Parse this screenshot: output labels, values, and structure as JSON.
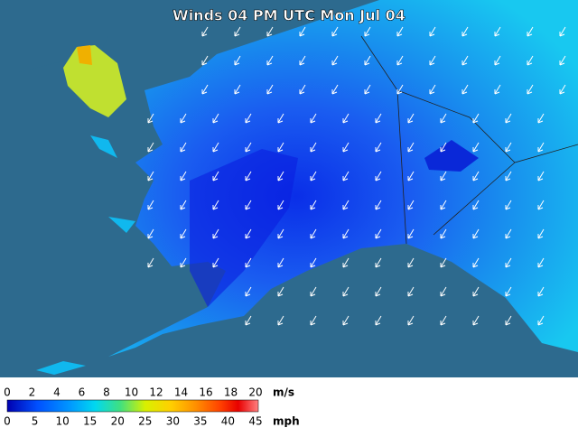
{
  "title": "Winds 04 PM UTC Mon Jul 04",
  "legend": {
    "ms_ticks": [
      0,
      2,
      4,
      6,
      8,
      10,
      12,
      14,
      16,
      18,
      20
    ],
    "ms_unit": "m/s",
    "mph_ticks": [
      0,
      5,
      10,
      15,
      20,
      25,
      30,
      35,
      40,
      45
    ],
    "mph_unit": "mph"
  }
}
